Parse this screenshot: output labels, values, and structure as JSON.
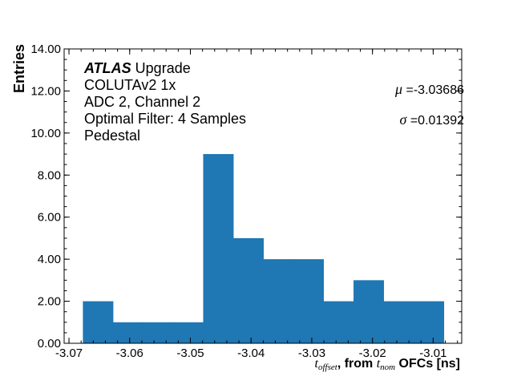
{
  "chart_data": {
    "type": "bar",
    "subtype": "histogram",
    "bin_edges": [
      -3.06771,
      -3.06276,
      -3.0578,
      -3.05285,
      -3.04789,
      -3.04294,
      -3.03798,
      -3.03303,
      -3.02808,
      -3.02312,
      -3.01817,
      -3.01321,
      -3.00826
    ],
    "values": [
      2,
      1,
      1,
      1,
      9,
      5,
      4,
      4,
      2,
      3,
      2,
      2
    ],
    "xlabel_var": "t",
    "xlabel_var_sub": "offset",
    "xlabel_mid": ", from ",
    "xlabel_var2": "t",
    "xlabel_var2_sub": "nom",
    "xlabel_end": " OFCs [ns]",
    "ylabel": "Entries",
    "xlim": [
      -3.0708,
      -3.0053
    ],
    "ylim": [
      0,
      14
    ],
    "xticks": [
      -3.07,
      -3.06,
      -3.05,
      -3.04,
      -3.03,
      -3.02,
      -3.01
    ],
    "xtick_labels": [
      "-3.07",
      "-3.06",
      "-3.05",
      "-3.04",
      "-3.03",
      "-3.02",
      "-3.01"
    ],
    "yticks": [
      0,
      2,
      4,
      6,
      8,
      10,
      12,
      14
    ],
    "ytick_labels": [
      "0.00",
      "2.00",
      "4.00",
      "6.00",
      "8.00",
      "10.00",
      "12.00",
      "14.00"
    ],
    "grid": false,
    "bar_color": "#1f77b4",
    "annotations": {
      "atlas": "ATLAS",
      "atlas_suffix": " Upgrade",
      "lines": [
        "COLUTAv2 1x",
        "ADC 2, Channel 2",
        "Optimal Filter: 4 Samples",
        "Pedestal"
      ],
      "mu_symbol": "μ",
      "mu_value": " =-3.03686",
      "sigma_symbol": "σ",
      "sigma_value": " =0.01392"
    }
  }
}
